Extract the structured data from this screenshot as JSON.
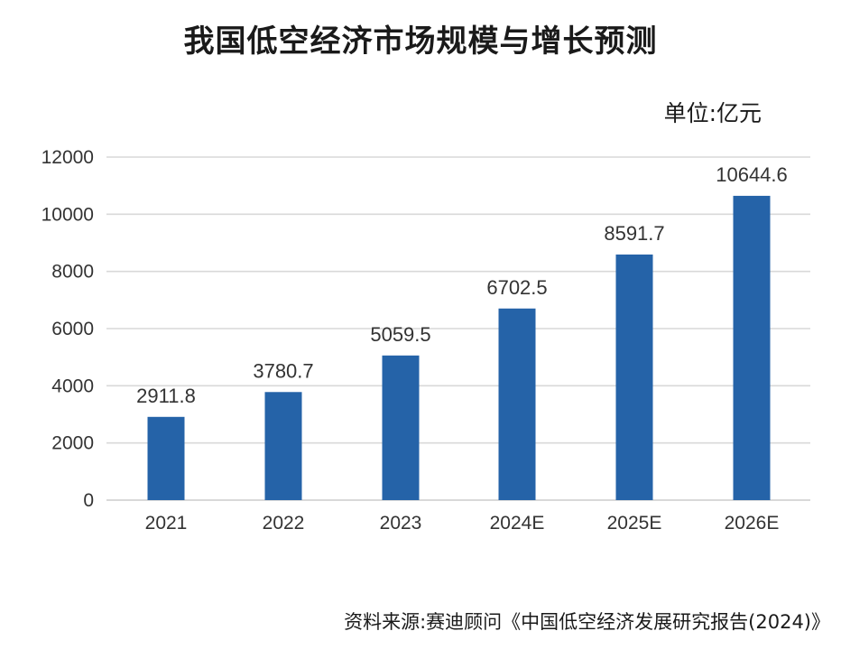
{
  "chart_data": {
    "type": "bar",
    "title": "我国低空经济市场规模与增长预测",
    "unit": "单位:亿元",
    "source": "资料来源:赛迪顾问《中国低空经济发展研究报告(2024)》",
    "categories": [
      "2021",
      "2022",
      "2023",
      "2024E",
      "2025E",
      "2026E"
    ],
    "values": [
      2911.8,
      3780.7,
      5059.5,
      6702.5,
      8591.7,
      10644.6
    ],
    "data_labels": [
      "2911.8",
      "3780.7",
      "5059.5",
      "6702.5",
      "8591.7",
      "10644.6"
    ],
    "ylim": [
      0,
      12000
    ],
    "yticks": [
      "0",
      "2000",
      "4000",
      "6000",
      "8000",
      "10000",
      "12000"
    ],
    "grid": true,
    "bar_color": "#2563a8",
    "grid_color": "#d9d9d9"
  }
}
